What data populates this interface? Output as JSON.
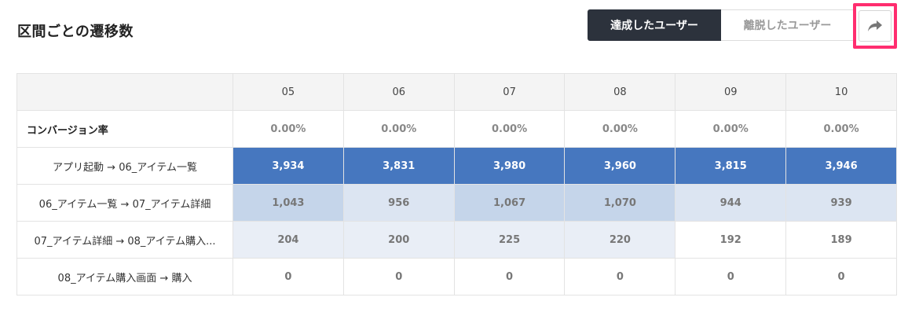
{
  "header": {
    "title": "区間ごとの遷移数",
    "toggle": {
      "achieved_label": "達成したユーザー",
      "left_label": "離脱したユーザー"
    },
    "share_icon": "share-arrow-icon"
  },
  "table": {
    "columns": [
      "05",
      "06",
      "07",
      "08",
      "09",
      "10"
    ],
    "conversion": {
      "label": "コンバージョン率",
      "values": [
        "0.00%",
        "0.00%",
        "0.00%",
        "0.00%",
        "0.00%",
        "0.00%"
      ]
    },
    "rows": [
      {
        "label": "アプリ起動 → 06_アイテム一覧",
        "values": [
          "3,934",
          "3,831",
          "3,980",
          "3,960",
          "3,815",
          "3,946"
        ],
        "colors": [
          "#4677bf",
          "#4677bf",
          "#4677bf",
          "#4677bf",
          "#4677bf",
          "#4677bf"
        ]
      },
      {
        "label": "06_アイテム一覧 → 07_アイテム詳細",
        "values": [
          "1,043",
          "956",
          "1,067",
          "1,070",
          "944",
          "939"
        ],
        "colors": [
          "#c5d5ea",
          "#dce5f2",
          "#c5d5ea",
          "#c5d5ea",
          "#dce5f2",
          "#dce5f2"
        ]
      },
      {
        "label": "07_アイテム詳細 → 08_アイテム購入...",
        "values": [
          "204",
          "200",
          "225",
          "220",
          "192",
          "189"
        ],
        "colors": [
          "#e9eef6",
          "#e9eef6",
          "#e9eef6",
          "#e9eef6",
          "#ffffff",
          "#ffffff"
        ]
      },
      {
        "label": "08_アイテム購入画面 → 購入",
        "values": [
          "0",
          "0",
          "0",
          "0",
          "0",
          "0"
        ],
        "colors": [
          "#ffffff",
          "#ffffff",
          "#ffffff",
          "#ffffff",
          "#ffffff",
          "#ffffff"
        ]
      }
    ]
  },
  "colors": {
    "toggle_active_bg": "#2c323c",
    "highlight_border": "#ff2d6f"
  }
}
